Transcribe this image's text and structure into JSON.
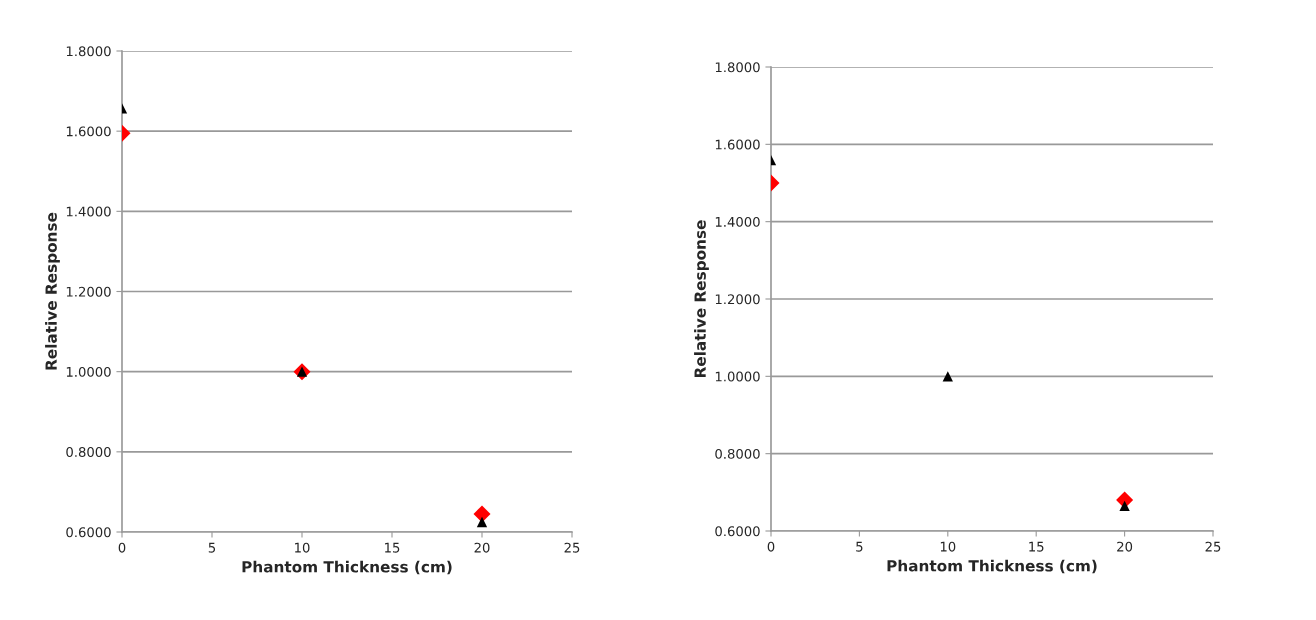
{
  "chart_data": [
    {
      "type": "scatter",
      "xlabel": "Phantom Thickness (cm)",
      "ylabel": "Relative Response",
      "xlim": [
        0,
        25
      ],
      "xticks": [
        0,
        5,
        10,
        15,
        20,
        25
      ],
      "ylim": [
        0.6,
        1.8
      ],
      "yticks": [
        {
          "value": 0.6,
          "label": "0.6000"
        },
        {
          "value": 0.8,
          "label": "0.8000"
        },
        {
          "value": 1.0,
          "label": "1.0000"
        },
        {
          "value": 1.2,
          "label": "1.2000"
        },
        {
          "value": 1.4,
          "label": "1.4000"
        },
        {
          "value": 1.6,
          "label": "1.6000"
        },
        {
          "value": 1.8,
          "label": "1.8000"
        }
      ],
      "grid": "y",
      "legend": false,
      "series": [
        {
          "color": "#ff0000",
          "marker": "diamond",
          "x": [
            0,
            10,
            20
          ],
          "values": [
            1.595,
            1.0,
            0.645
          ]
        },
        {
          "color": "#000000",
          "marker": "triangle",
          "x": [
            0,
            10,
            20
          ],
          "values": [
            1.657,
            1.0,
            0.625
          ]
        }
      ]
    },
    {
      "type": "scatter",
      "xlabel": "Phantom Thickness (cm)",
      "ylabel": "Relative Response",
      "xlim": [
        0,
        25
      ],
      "xticks": [
        0,
        5,
        10,
        15,
        20,
        25
      ],
      "ylim": [
        0.6,
        1.8
      ],
      "yticks": [
        {
          "value": 0.6,
          "label": "0.6000"
        },
        {
          "value": 0.8,
          "label": "0.8000"
        },
        {
          "value": 1.0,
          "label": "1.0000"
        },
        {
          "value": 1.2,
          "label": "1.2000"
        },
        {
          "value": 1.4,
          "label": "1.4000"
        },
        {
          "value": 1.6,
          "label": "1.6000"
        },
        {
          "value": 1.8,
          "label": "1.8000"
        }
      ],
      "grid": "y",
      "legend": false,
      "series": [
        {
          "color": "#ff0000",
          "marker": "diamond",
          "x": [
            0,
            10,
            20
          ],
          "values": [
            1.5,
            null,
            0.68
          ]
        },
        {
          "color": "#000000",
          "marker": "triangle",
          "x": [
            0,
            10,
            20
          ],
          "values": [
            1.559,
            1.0,
            0.665
          ]
        }
      ]
    }
  ]
}
